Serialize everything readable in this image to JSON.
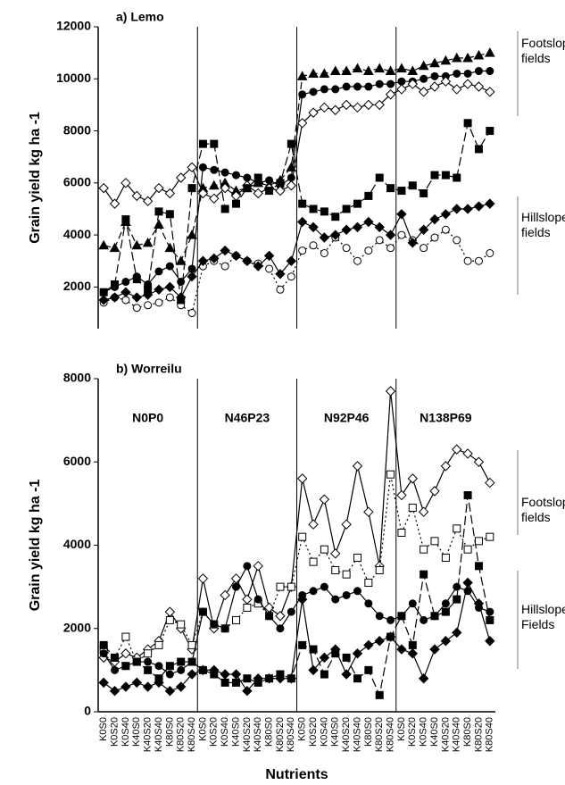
{
  "chart_data": [
    {
      "type": "line",
      "title": "a) Lemo",
      "y_label": "Grain yield kg ha -1",
      "ylim": [
        400,
        12000
      ],
      "yticks": [
        2000,
        4000,
        6000,
        8000,
        10000,
        12000
      ],
      "footslope_label": "Footslope fields",
      "hillslope_label": "Hillslope fields",
      "series": [
        {
          "marker": "triangle",
          "filled": true,
          "dash": "8 4",
          "color": "#000000",
          "values": [
            3600,
            3500,
            4500,
            3600,
            3700,
            4400,
            3500,
            3000,
            4000,
            5800,
            5900,
            6000,
            5700,
            5800,
            6000,
            5900,
            6100,
            6600,
            10100,
            10200,
            10200,
            10300,
            10300,
            10400,
            10300,
            10400,
            10300,
            10400,
            10300,
            10500,
            10600,
            10700,
            10800,
            10800,
            10900,
            11000
          ]
        },
        {
          "marker": "circle",
          "filled": true,
          "dash": "",
          "color": "#000000",
          "values": [
            1800,
            2000,
            2200,
            2400,
            2100,
            2600,
            2800,
            2200,
            2700,
            6600,
            6500,
            6400,
            6300,
            6200,
            6000,
            6100,
            5900,
            6200,
            9400,
            9500,
            9600,
            9600,
            9700,
            9700,
            9700,
            9800,
            9800,
            9900,
            9900,
            10000,
            10100,
            10100,
            10200,
            10200,
            10300,
            10300
          ]
        },
        {
          "marker": "diamond",
          "filled": false,
          "dash": "",
          "color": "#000000",
          "values": [
            5800,
            5200,
            6000,
            5500,
            5300,
            5800,
            5600,
            6200,
            6600,
            5600,
            5400,
            5800,
            5500,
            5900,
            5600,
            5800,
            5700,
            5900,
            8300,
            8700,
            8900,
            8800,
            9000,
            8900,
            9000,
            9000,
            9400,
            9600,
            9800,
            9500,
            9700,
            9900,
            9600,
            9800,
            9700,
            9500
          ]
        },
        {
          "marker": "circle",
          "filled": false,
          "dash": "2 3",
          "color": "#000000",
          "values": [
            1400,
            1600,
            1500,
            1200,
            1300,
            1400,
            1600,
            1300,
            1000,
            2800,
            3000,
            2800,
            3200,
            3000,
            2900,
            2700,
            1900,
            2400,
            3400,
            3600,
            3300,
            3900,
            3500,
            3000,
            3400,
            3800,
            3500,
            4000,
            3800,
            3500,
            3900,
            4200,
            3800,
            3000,
            3000,
            3300
          ]
        },
        {
          "marker": "diamond",
          "filled": true,
          "dash": "",
          "color": "#000000",
          "values": [
            1500,
            1600,
            1800,
            1600,
            1700,
            1900,
            2000,
            1600,
            2400,
            3000,
            3100,
            3400,
            3200,
            3000,
            2800,
            3200,
            2500,
            3000,
            4500,
            4300,
            3900,
            4000,
            4200,
            4300,
            4500,
            4300,
            4000,
            4800,
            3700,
            4200,
            4600,
            4800,
            5000,
            5000,
            5100,
            5200
          ]
        },
        {
          "marker": "square",
          "filled": true,
          "dash": "10 4",
          "color": "#000000",
          "values": [
            1800,
            2100,
            4600,
            2300,
            1900,
            4900,
            4800,
            1500,
            5800,
            7500,
            7500,
            5000,
            5200,
            5800,
            6200,
            5700,
            6000,
            7500,
            5200,
            5000,
            4900,
            4700,
            5000,
            5200,
            5500,
            6200,
            5800,
            5700,
            5900,
            5600,
            6300,
            6300,
            6200,
            8300,
            7300,
            8000
          ]
        }
      ]
    },
    {
      "type": "line",
      "title": "b) Worreilu",
      "y_label": "Grain yield kg ha -1",
      "x_label": "Nutrients",
      "ylim": [
        0,
        8000
      ],
      "yticks": [
        0,
        2000,
        4000,
        6000,
        8000
      ],
      "section_labels": [
        "N0P0",
        "N46P23",
        "N92P46",
        "N138P69"
      ],
      "footslope_label": "Footslope fields",
      "hillslope_label": "Hillslope Fields",
      "categories": [
        "K0S0",
        "K0S20",
        "K0S40",
        "K40S0",
        "K40S20",
        "K40S40",
        "K80S0",
        "K80S20",
        "K80S40",
        "K0S0",
        "K0S20",
        "K0S40",
        "K40S0",
        "K40S20",
        "K40S40",
        "K80S0",
        "K80S20",
        "K80S40",
        "K0S0",
        "K0S20",
        "K0S40",
        "K40S0",
        "K40S20",
        "K40S40",
        "K80S0",
        "K80S20",
        "K80S40",
        "K0S0",
        "K0S20",
        "K0S40",
        "K40S0",
        "K40S20",
        "K40S40",
        "K80S0",
        "K80S20",
        "K80S40"
      ],
      "series": [
        {
          "marker": "diamond",
          "filled": false,
          "dash": "",
          "color": "#000000",
          "values": [
            1300,
            1200,
            1400,
            1300,
            1500,
            1700,
            2400,
            2000,
            1500,
            3200,
            2000,
            2800,
            3200,
            2700,
            3500,
            2500,
            2300,
            3000,
            5600,
            4500,
            5100,
            3800,
            4500,
            5900,
            4800,
            3500,
            7700,
            5200,
            5600,
            4800,
            5300,
            5900,
            6300,
            6200,
            6000,
            5500
          ]
        },
        {
          "marker": "square",
          "filled": false,
          "dash": "2 3",
          "color": "#000000",
          "values": [
            1500,
            1300,
            1800,
            1200,
            1400,
            1600,
            2200,
            2100,
            1600,
            2400,
            2100,
            2000,
            2200,
            2500,
            2600,
            2300,
            3000,
            3000,
            4200,
            3600,
            3900,
            3400,
            3300,
            3700,
            3100,
            3400,
            5700,
            4300,
            4900,
            3900,
            4100,
            3700,
            4400,
            3900,
            4100,
            4200
          ]
        },
        {
          "marker": "circle",
          "filled": true,
          "dash": "",
          "color": "#000000",
          "values": [
            1400,
            1000,
            1100,
            1200,
            1200,
            1100,
            900,
            1000,
            1200,
            2400,
            2100,
            2000,
            3000,
            3500,
            2700,
            2300,
            2000,
            2400,
            2800,
            2900,
            3000,
            2700,
            2800,
            2900,
            2600,
            2300,
            2200,
            2300,
            2600,
            2200,
            2300,
            2600,
            3000,
            2900,
            2500,
            2400
          ]
        },
        {
          "marker": "square",
          "filled": true,
          "dash": "10 4",
          "color": "#000000",
          "values": [
            1600,
            1300,
            1100,
            1200,
            1000,
            800,
            1100,
            1200,
            1200,
            1000,
            900,
            700,
            700,
            800,
            700,
            800,
            900,
            800,
            1600,
            1500,
            900,
            1400,
            1300,
            800,
            1000,
            400,
            1800,
            2300,
            1600,
            3300,
            2300,
            2400,
            2700,
            5200,
            3500,
            2200
          ]
        },
        {
          "marker": "diamond",
          "filled": true,
          "dash": "",
          "color": "#000000",
          "values": [
            700,
            500,
            600,
            700,
            600,
            700,
            500,
            600,
            900,
            1000,
            1000,
            900,
            900,
            500,
            800,
            800,
            800,
            800,
            2700,
            1000,
            1300,
            1500,
            900,
            1400,
            1600,
            1700,
            1800,
            1500,
            1400,
            800,
            1500,
            1700,
            1900,
            3100,
            2600,
            1700
          ]
        }
      ]
    }
  ]
}
